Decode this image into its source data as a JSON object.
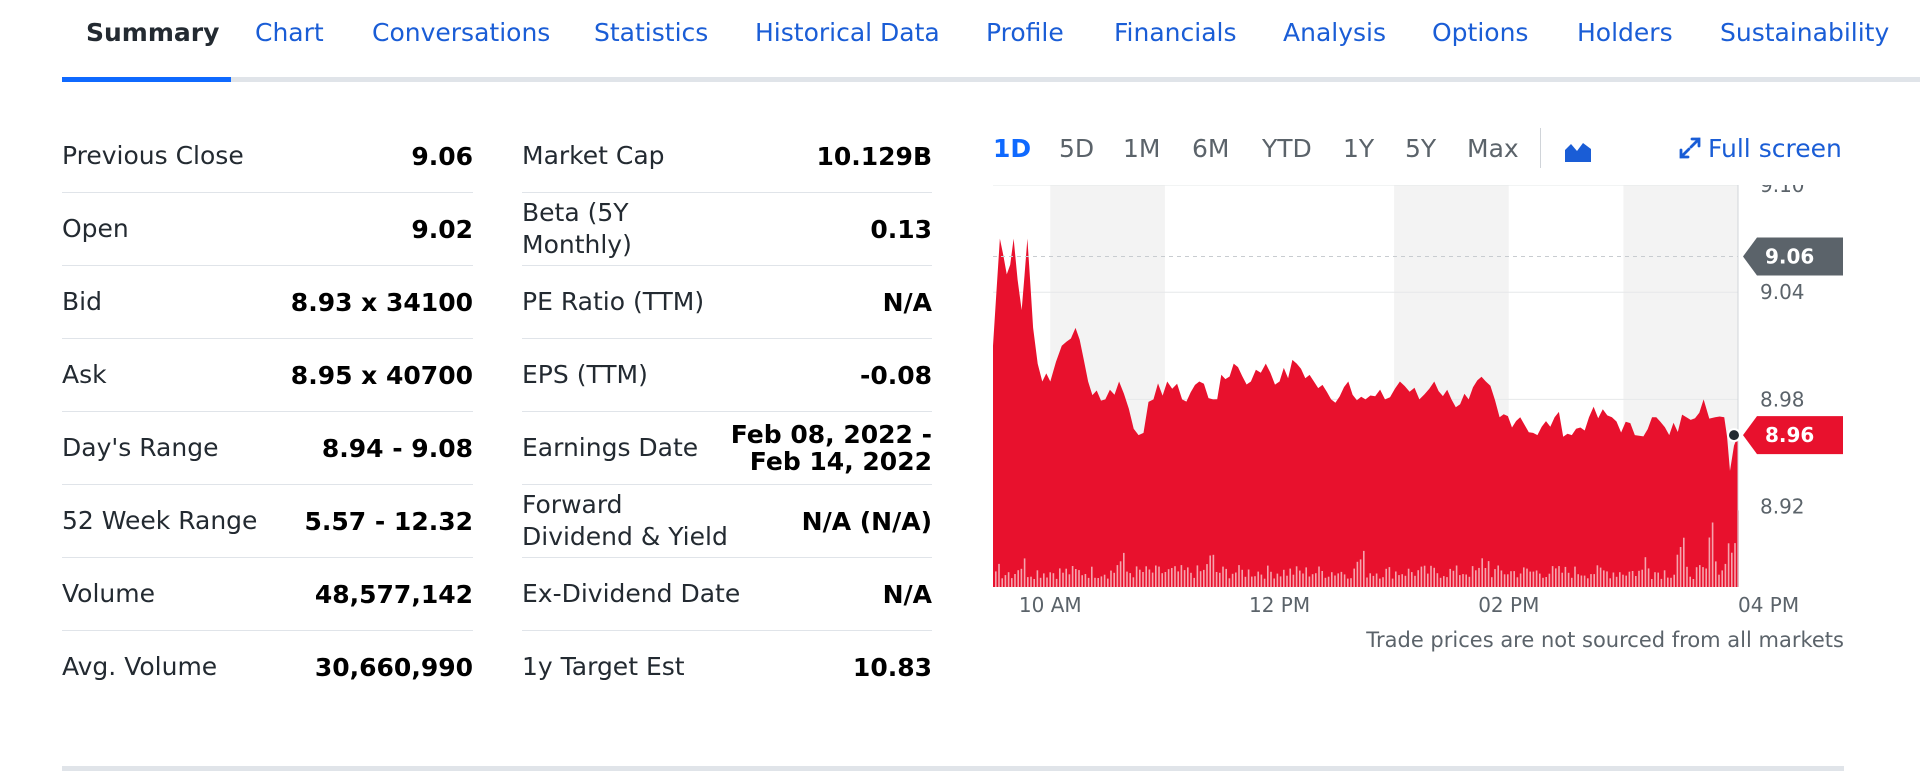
{
  "tabs": [
    {
      "label": "Summary",
      "active": true
    },
    {
      "label": "Chart"
    },
    {
      "label": "Conversations"
    },
    {
      "label": "Statistics"
    },
    {
      "label": "Historical Data"
    },
    {
      "label": "Profile"
    },
    {
      "label": "Financials"
    },
    {
      "label": "Analysis"
    },
    {
      "label": "Options"
    },
    {
      "label": "Holders"
    },
    {
      "label": "Sustainability"
    }
  ],
  "left_stats": [
    {
      "label": "Previous Close",
      "value": "9.06"
    },
    {
      "label": "Open",
      "value": "9.02"
    },
    {
      "label": "Bid",
      "value": "8.93 x 34100"
    },
    {
      "label": "Ask",
      "value": "8.95 x 40700"
    },
    {
      "label": "Day's Range",
      "value": "8.94 - 9.08"
    },
    {
      "label": "52 Week Range",
      "value": "5.57 - 12.32"
    },
    {
      "label": "Volume",
      "value": "48,577,142"
    },
    {
      "label": "Avg. Volume",
      "value": "30,660,990"
    }
  ],
  "right_stats": [
    {
      "label": "Market Cap",
      "value": "10.129B"
    },
    {
      "label": "Beta (5Y Monthly)",
      "value": "0.13"
    },
    {
      "label": "PE Ratio (TTM)",
      "value": "N/A"
    },
    {
      "label": "EPS (TTM)",
      "value": "-0.08"
    },
    {
      "label": "Earnings Date",
      "value": "Feb 08, 2022 - Feb 14, 2022"
    },
    {
      "label": "Forward Dividend & Yield",
      "value": "N/A (N/A)"
    },
    {
      "label": "Ex-Dividend Date",
      "value": "N/A"
    },
    {
      "label": "1y Target Est",
      "value": "10.83"
    }
  ],
  "chart": {
    "ranges": [
      "1D",
      "5D",
      "1M",
      "6M",
      "YTD",
      "1Y",
      "5Y",
      "Max"
    ],
    "active_range": "1D",
    "fullscreen_label": "Full screen",
    "disclaimer": "Trade prices are not sourced from all markets",
    "colors": {
      "fill": "#e8112d",
      "volume": "#f5a3ad",
      "shade": "#f3f3f3",
      "prev_close_badge": "#5b636a",
      "current_badge": "#e8112d"
    }
  },
  "chart_data": {
    "type": "area",
    "title": "",
    "x_ticks": [
      "10 AM",
      "12 PM",
      "02 PM",
      "04 PM"
    ],
    "y_ticks": [
      "9.10",
      "9.04",
      "8.98",
      "8.92"
    ],
    "ylim": [
      8.875,
      9.1
    ],
    "previous_close": 9.06,
    "previous_close_label": "9.06",
    "current_price": 8.96,
    "current_price_label": "8.96",
    "x_start": 9.5,
    "x_end": 16.0,
    "prices": [
      [
        9.5,
        9.01
      ],
      [
        9.56,
        9.07
      ],
      [
        9.62,
        9.05
      ],
      [
        9.68,
        9.07
      ],
      [
        9.75,
        9.03
      ],
      [
        9.8,
        9.07
      ],
      [
        9.85,
        9.02
      ],
      [
        9.93,
        8.99
      ],
      [
        10.0,
        8.99
      ],
      [
        10.1,
        9.01
      ],
      [
        10.22,
        9.02
      ],
      [
        10.33,
        8.99
      ],
      [
        10.48,
        8.98
      ],
      [
        10.6,
        8.99
      ],
      [
        10.77,
        8.96
      ],
      [
        10.9,
        8.98
      ],
      [
        11.02,
        8.99
      ],
      [
        11.15,
        8.98
      ],
      [
        11.3,
        8.99
      ],
      [
        11.42,
        8.98
      ],
      [
        11.6,
        9.0
      ],
      [
        11.75,
        8.99
      ],
      [
        11.88,
        9.0
      ],
      [
        12.0,
        8.99
      ],
      [
        12.15,
        9.0
      ],
      [
        12.3,
        8.99
      ],
      [
        12.45,
        8.98
      ],
      [
        12.6,
        8.99
      ],
      [
        12.75,
        8.98
      ],
      [
        12.92,
        8.98
      ],
      [
        13.05,
        8.99
      ],
      [
        13.22,
        8.98
      ],
      [
        13.35,
        8.99
      ],
      [
        13.5,
        8.98
      ],
      [
        13.65,
        8.98
      ],
      [
        13.8,
        8.99
      ],
      [
        13.92,
        8.97
      ],
      [
        14.1,
        8.97
      ],
      [
        14.25,
        8.96
      ],
      [
        14.4,
        8.97
      ],
      [
        14.55,
        8.96
      ],
      [
        14.7,
        8.97
      ],
      [
        14.9,
        8.97
      ],
      [
        15.1,
        8.96
      ],
      [
        15.25,
        8.97
      ],
      [
        15.4,
        8.96
      ],
      [
        15.55,
        8.97
      ],
      [
        15.7,
        8.98
      ],
      [
        15.8,
        8.97
      ],
      [
        15.88,
        8.97
      ],
      [
        15.93,
        8.94
      ],
      [
        16.0,
        8.96
      ]
    ],
    "volume_spikes": [
      [
        9.52,
        0.55
      ],
      [
        9.75,
        0.5
      ],
      [
        10.6,
        0.65
      ],
      [
        11.4,
        0.7
      ],
      [
        12.7,
        0.75
      ],
      [
        13.8,
        0.6
      ],
      [
        15.2,
        1.0
      ],
      [
        15.5,
        1.3
      ],
      [
        15.78,
        2.1
      ],
      [
        15.9,
        1.6
      ],
      [
        15.98,
        2.6
      ]
    ]
  }
}
